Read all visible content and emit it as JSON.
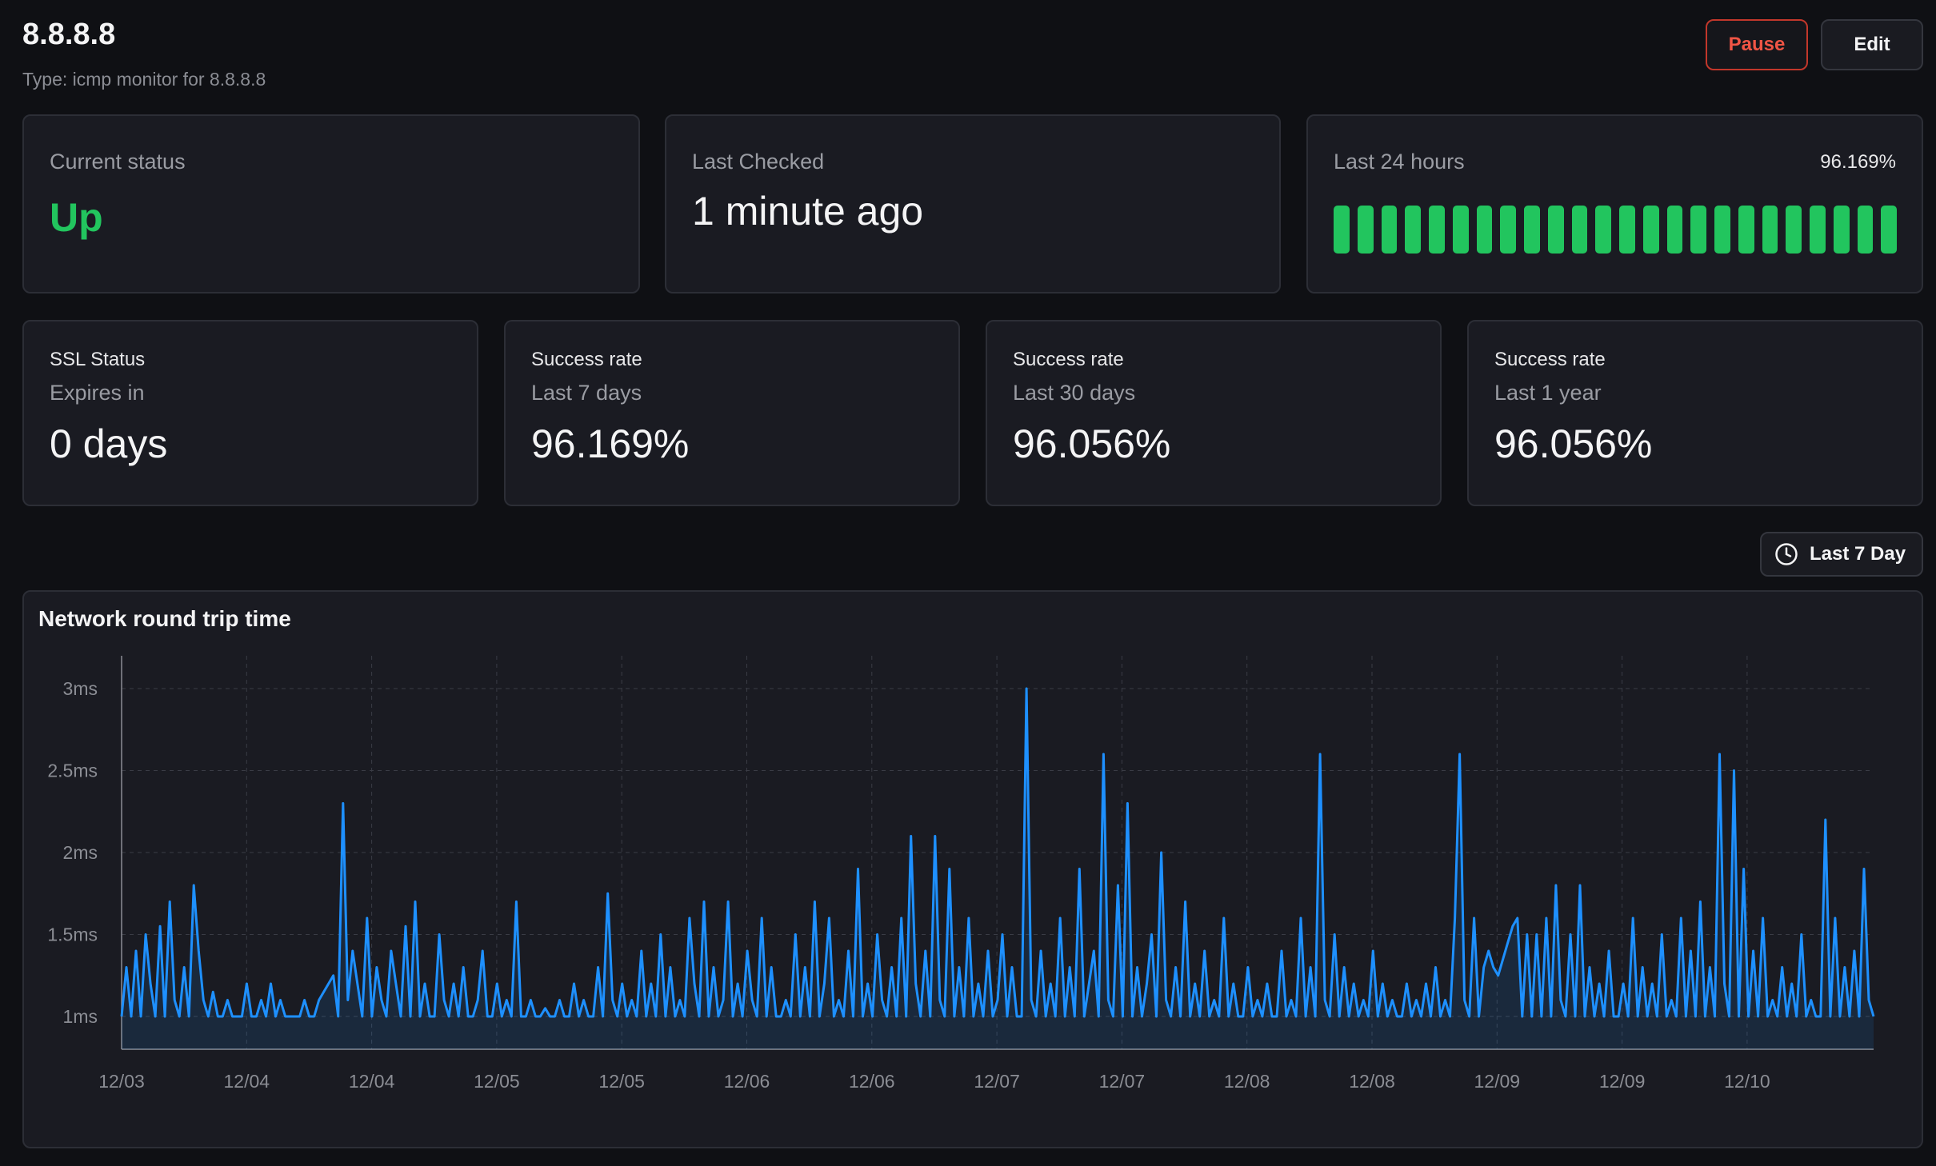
{
  "header": {
    "title": "8.8.8.8",
    "subtitle": "Type: icmp monitor for 8.8.8.8",
    "pause_label": "Pause",
    "edit_label": "Edit"
  },
  "cards": {
    "current_status": {
      "label": "Current status",
      "value": "Up"
    },
    "last_checked": {
      "label": "Last Checked",
      "value": "1 minute ago"
    },
    "last_24h": {
      "label": "Last 24 hours",
      "percent": "96.169%",
      "bar_count": 24
    },
    "ssl": {
      "title": "SSL Status",
      "label": "Expires in",
      "value": "0 days"
    },
    "success_7d": {
      "title": "Success rate",
      "label": "Last 7 days",
      "value": "96.169%"
    },
    "success_30d": {
      "title": "Success rate",
      "label": "Last 30 days",
      "value": "96.056%"
    },
    "success_1y": {
      "title": "Success rate",
      "label": "Last 1 year",
      "value": "96.056%"
    }
  },
  "range_selector": {
    "label": "Last 7 Day",
    "icon": "clock-icon"
  },
  "colors": {
    "up": "#22c55e",
    "line": "#1e90ff",
    "pause": "#f05545",
    "background": "#0f1014",
    "card": "#1a1b22"
  },
  "chart_data": {
    "type": "area",
    "title": "Network round trip time",
    "ylabel": "",
    "xlabel": "",
    "y_unit": "ms",
    "ylim": [
      0.8,
      3.2
    ],
    "y_ticks": [
      1,
      1.5,
      2,
      2.5,
      3
    ],
    "y_tick_labels": [
      "1ms",
      "1.5ms",
      "2ms",
      "2.5ms",
      "3ms"
    ],
    "x_tick_labels": [
      "12/03",
      "12/04",
      "12/04",
      "12/05",
      "12/05",
      "12/06",
      "12/06",
      "12/07",
      "12/07",
      "12/08",
      "12/08",
      "12/09",
      "12/09",
      "12/10"
    ],
    "grid": true,
    "series": [
      {
        "values": [
          1.0,
          1.3,
          1.0,
          1.4,
          1.0,
          1.5,
          1.2,
          1.0,
          1.55,
          1.0,
          1.7,
          1.1,
          1.0,
          1.3,
          1.0,
          1.8,
          1.4,
          1.1,
          1.0,
          1.15,
          1.0,
          1.0,
          1.1,
          1.0,
          1.0,
          1.0,
          1.2,
          1.0,
          1.0,
          1.1,
          1.0,
          1.2,
          1.0,
          1.1,
          1.0,
          1.0,
          1.0,
          1.0,
          1.1,
          1.0,
          1.0,
          1.1,
          1.15,
          1.2,
          1.25,
          1.0,
          2.3,
          1.1,
          1.4,
          1.2,
          1.0,
          1.6,
          1.0,
          1.3,
          1.1,
          1.0,
          1.4,
          1.2,
          1.0,
          1.55,
          1.0,
          1.7,
          1.0,
          1.2,
          1.0,
          1.0,
          1.5,
          1.1,
          1.0,
          1.2,
          1.0,
          1.3,
          1.0,
          1.0,
          1.1,
          1.4,
          1.0,
          1.0,
          1.2,
          1.0,
          1.1,
          1.0,
          1.7,
          1.0,
          1.0,
          1.1,
          1.0,
          1.0,
          1.05,
          1.0,
          1.0,
          1.1,
          1.0,
          1.0,
          1.2,
          1.0,
          1.1,
          1.0,
          1.0,
          1.3,
          1.0,
          1.75,
          1.1,
          1.0,
          1.2,
          1.0,
          1.1,
          1.0,
          1.4,
          1.0,
          1.2,
          1.0,
          1.5,
          1.0,
          1.3,
          1.0,
          1.1,
          1.0,
          1.6,
          1.2,
          1.0,
          1.7,
          1.0,
          1.3,
          1.0,
          1.1,
          1.7,
          1.0,
          1.2,
          1.0,
          1.4,
          1.1,
          1.0,
          1.6,
          1.0,
          1.3,
          1.0,
          1.0,
          1.1,
          1.0,
          1.5,
          1.0,
          1.3,
          1.0,
          1.7,
          1.0,
          1.2,
          1.6,
          1.0,
          1.1,
          1.0,
          1.4,
          1.0,
          1.9,
          1.0,
          1.2,
          1.0,
          1.5,
          1.1,
          1.0,
          1.3,
          1.0,
          1.6,
          1.0,
          2.1,
          1.2,
          1.0,
          1.4,
          1.0,
          2.1,
          1.1,
          1.0,
          1.9,
          1.0,
          1.3,
          1.0,
          1.6,
          1.0,
          1.2,
          1.0,
          1.4,
          1.0,
          1.1,
          1.5,
          1.0,
          1.3,
          1.0,
          1.0,
          3.0,
          1.1,
          1.0,
          1.4,
          1.0,
          1.2,
          1.0,
          1.6,
          1.0,
          1.3,
          1.0,
          1.9,
          1.0,
          1.2,
          1.4,
          1.0,
          2.6,
          1.1,
          1.0,
          1.8,
          1.0,
          2.3,
          1.0,
          1.3,
          1.0,
          1.2,
          1.5,
          1.0,
          2.0,
          1.1,
          1.0,
          1.3,
          1.0,
          1.7,
          1.0,
          1.2,
          1.0,
          1.4,
          1.0,
          1.1,
          1.0,
          1.6,
          1.0,
          1.2,
          1.0,
          1.0,
          1.3,
          1.0,
          1.1,
          1.0,
          1.2,
          1.0,
          1.0,
          1.4,
          1.0,
          1.1,
          1.0,
          1.6,
          1.0,
          1.3,
          1.0,
          2.6,
          1.1,
          1.0,
          1.5,
          1.0,
          1.3,
          1.0,
          1.2,
          1.0,
          1.1,
          1.0,
          1.4,
          1.0,
          1.2,
          1.0,
          1.1,
          1.0,
          1.0,
          1.2,
          1.0,
          1.1,
          1.0,
          1.2,
          1.0,
          1.3,
          1.0,
          1.1,
          1.0,
          1.6,
          2.6,
          1.1,
          1.0,
          1.6,
          1.0,
          1.3,
          1.4,
          1.3,
          1.25,
          1.35,
          1.45,
          1.55,
          1.6,
          1.0,
          1.5,
          1.0,
          1.5,
          1.0,
          1.6,
          1.0,
          1.8,
          1.1,
          1.0,
          1.5,
          1.0,
          1.8,
          1.0,
          1.3,
          1.0,
          1.2,
          1.0,
          1.4,
          1.0,
          1.0,
          1.2,
          1.0,
          1.6,
          1.0,
          1.3,
          1.0,
          1.2,
          1.0,
          1.5,
          1.0,
          1.1,
          1.0,
          1.6,
          1.0,
          1.4,
          1.0,
          1.7,
          1.0,
          1.3,
          1.0,
          2.6,
          1.2,
          1.0,
          2.5,
          1.0,
          1.9,
          1.0,
          1.4,
          1.0,
          1.6,
          1.0,
          1.1,
          1.0,
          1.3,
          1.0,
          1.2,
          1.0,
          1.5,
          1.0,
          1.1,
          1.0,
          1.0,
          2.2,
          1.0,
          1.6,
          1.0,
          1.3,
          1.0,
          1.4,
          1.0,
          1.9,
          1.1,
          1.0
        ]
      }
    ]
  }
}
